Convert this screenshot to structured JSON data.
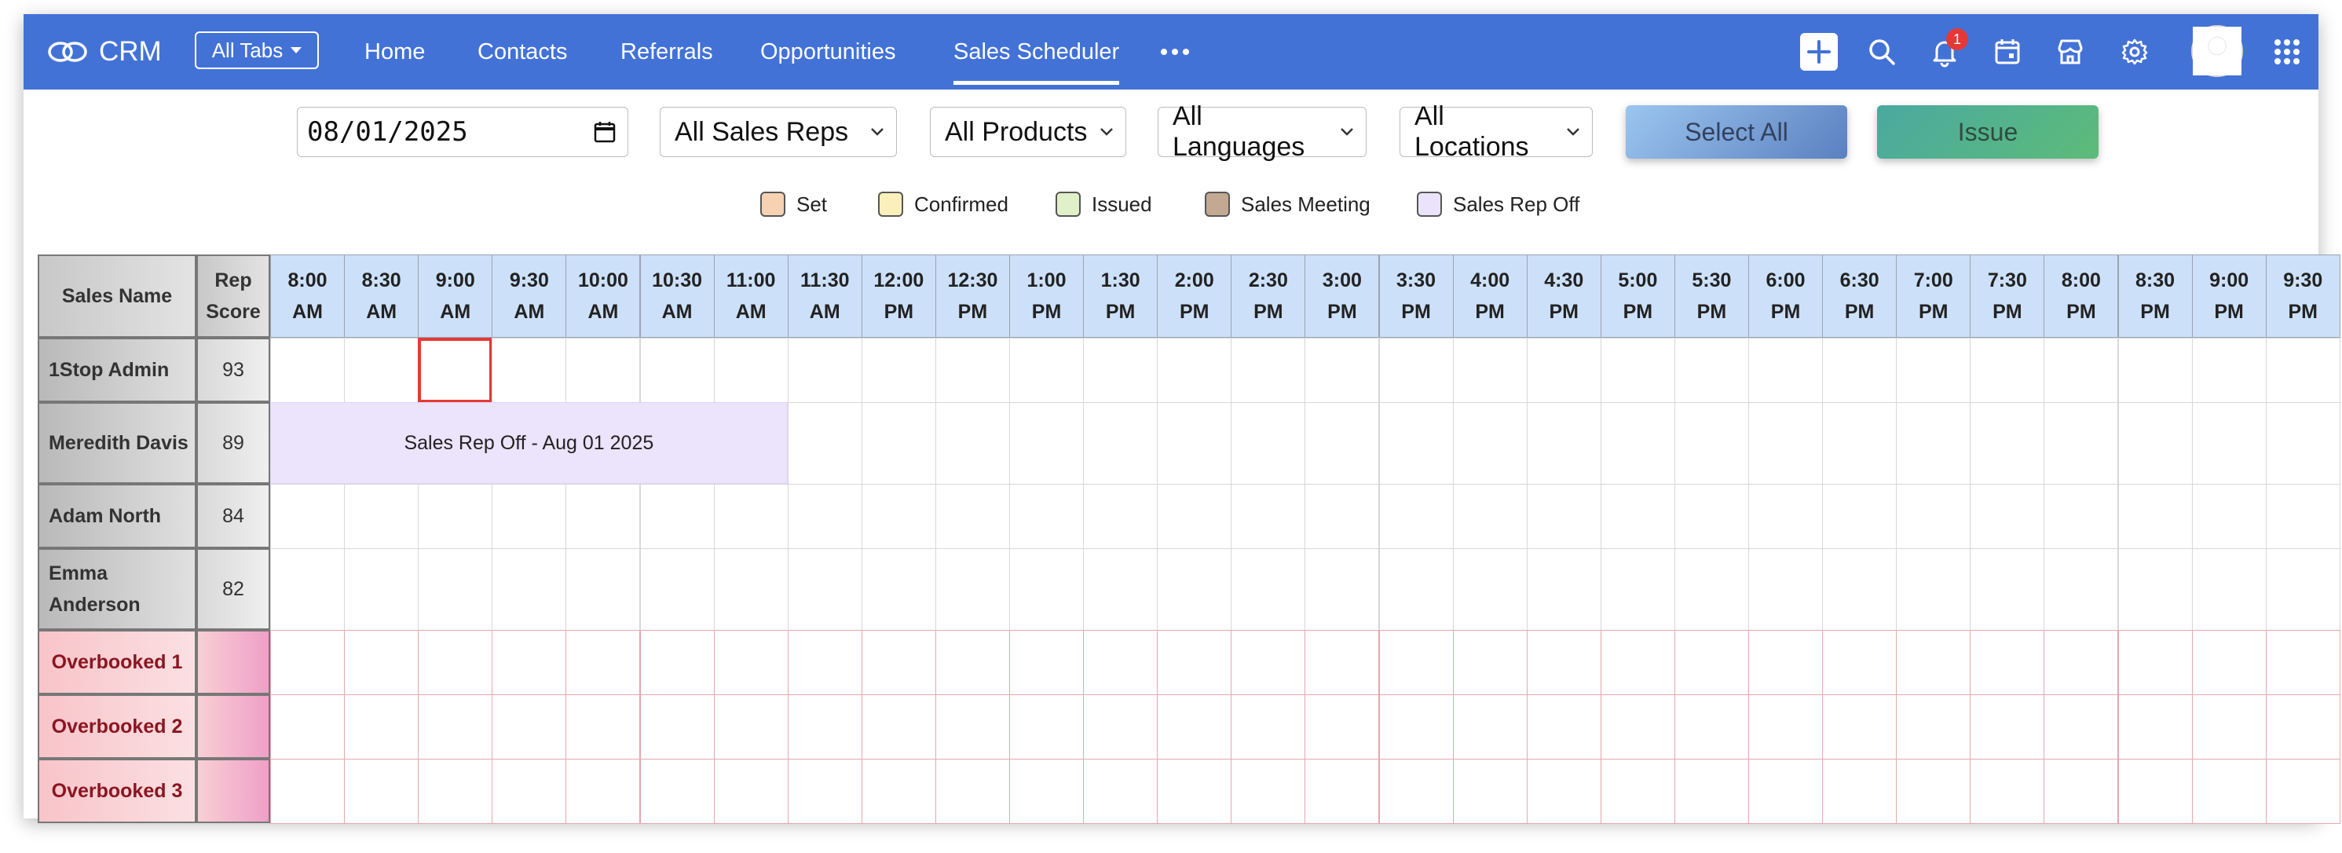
{
  "nav": {
    "brand": "CRM",
    "all_tabs": "All Tabs",
    "tabs": [
      {
        "label": "Home"
      },
      {
        "label": "Contacts"
      },
      {
        "label": "Referrals"
      },
      {
        "label": "Opportunities"
      },
      {
        "label": "Sales Scheduler",
        "active": true
      }
    ],
    "notification_count": "1"
  },
  "filters": {
    "date": "08/01/2025",
    "sales_reps": "All Sales Reps",
    "products": "All Products",
    "languages": "All Languages",
    "locations": "All Locations",
    "select_all": "Select All",
    "issue": "Issue"
  },
  "legend": [
    {
      "label": "Set",
      "color": "#f6d2b3"
    },
    {
      "label": "Confirmed",
      "color": "#fbf0bb"
    },
    {
      "label": "Issued",
      "color": "#e0f0c8"
    },
    {
      "label": "Sales Meeting",
      "color": "#c3a892"
    },
    {
      "label": "Sales Rep Off",
      "color": "#ebe3fb"
    }
  ],
  "schedule": {
    "header_name": "Sales Name",
    "header_score": "Rep Score",
    "times": [
      {
        "t": "8:00",
        "p": "AM"
      },
      {
        "t": "8:30",
        "p": "AM"
      },
      {
        "t": "9:00",
        "p": "AM"
      },
      {
        "t": "9:30",
        "p": "AM"
      },
      {
        "t": "10:00",
        "p": "AM"
      },
      {
        "t": "10:30",
        "p": "AM"
      },
      {
        "t": "11:00",
        "p": "AM"
      },
      {
        "t": "11:30",
        "p": "AM"
      },
      {
        "t": "12:00",
        "p": "PM"
      },
      {
        "t": "12:30",
        "p": "PM"
      },
      {
        "t": "1:00",
        "p": "PM"
      },
      {
        "t": "1:30",
        "p": "PM"
      },
      {
        "t": "2:00",
        "p": "PM"
      },
      {
        "t": "2:30",
        "p": "PM"
      },
      {
        "t": "3:00",
        "p": "PM"
      },
      {
        "t": "3:30",
        "p": "PM"
      },
      {
        "t": "4:00",
        "p": "PM"
      },
      {
        "t": "4:30",
        "p": "PM"
      },
      {
        "t": "5:00",
        "p": "PM"
      },
      {
        "t": "5:30",
        "p": "PM"
      },
      {
        "t": "6:00",
        "p": "PM"
      },
      {
        "t": "6:30",
        "p": "PM"
      },
      {
        "t": "7:00",
        "p": "PM"
      },
      {
        "t": "7:30",
        "p": "PM"
      },
      {
        "t": "8:00",
        "p": "PM"
      },
      {
        "t": "8:30",
        "p": "PM"
      },
      {
        "t": "9:00",
        "p": "PM"
      },
      {
        "t": "9:30",
        "p": "PM"
      }
    ],
    "reps": [
      {
        "name": "1Stop Admin",
        "score": "93",
        "selected_slot": 2
      },
      {
        "name": "Meredith Davis",
        "score": "89",
        "off_label": "Sales Rep Off - Aug 01 2025",
        "off_start": 0,
        "off_slots": 7
      },
      {
        "name": "Adam North",
        "score": "84"
      },
      {
        "name": "Emma Anderson",
        "score": "82"
      }
    ],
    "overbooked": [
      {
        "name": "Overbooked 1"
      },
      {
        "name": "Overbooked 2"
      },
      {
        "name": "Overbooked 3"
      }
    ]
  }
}
